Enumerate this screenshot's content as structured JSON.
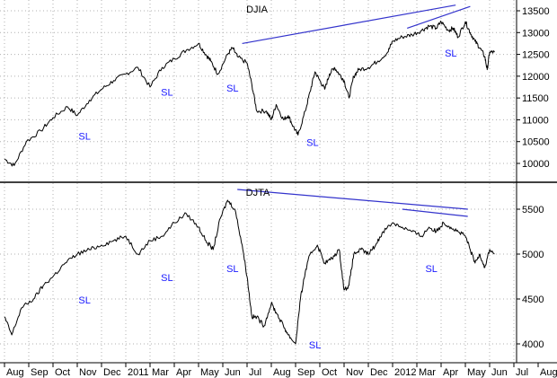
{
  "chart_data": {
    "type": "line",
    "months": [
      "Aug",
      "Sep",
      "Oct",
      "Nov",
      "Dec",
      "2011",
      "Mar",
      "Apr",
      "May",
      "Jun",
      "Jul",
      "Aug",
      "Sep",
      "Oct",
      "Nov",
      "Dec",
      "2012",
      "Mar",
      "Apr",
      "May",
      "Jun",
      "Jul",
      "Aug"
    ],
    "colors": {
      "line": "#000000",
      "trend": "#3333cc",
      "sl": "#1a1aff",
      "grid": "#b0b0b0",
      "divider": "#000000"
    },
    "grid": true,
    "panels": [
      {
        "title": "DJIA",
        "ylim": [
          9500,
          13800
        ],
        "yticks": [
          10000,
          10500,
          11000,
          11500,
          12000,
          12500,
          13000,
          13500
        ],
        "ytick_labels": [
          "10000",
          "10500",
          "11000",
          "11500",
          "12000",
          "12500",
          "13000",
          "13500"
        ],
        "series": {
          "x": [
            0,
            0.4,
            0.9,
            1.5,
            2.0,
            2.6,
            3.0,
            3.5,
            4.0,
            4.5,
            5.0,
            5.5,
            6.0,
            6.5,
            7.0,
            7.5,
            8.0,
            8.3,
            8.5,
            8.8,
            9.2,
            9.4,
            9.6,
            10.0,
            10.2,
            10.4,
            10.8,
            11.0,
            11.2,
            11.5,
            11.7,
            11.9,
            12.1,
            12.4,
            12.6,
            12.8,
            13.0,
            13.2,
            13.4,
            13.6,
            13.8,
            14.0,
            14.2,
            14.4,
            14.6,
            15.0,
            15.4,
            15.8,
            16.0,
            16.4,
            16.8,
            17.2,
            17.5,
            17.8,
            18.0,
            18.3,
            18.5,
            18.7,
            19.0,
            19.2,
            19.4,
            19.6,
            19.8,
            19.9,
            20.0,
            20.2
          ],
          "y": [
            10100,
            9950,
            10500,
            10750,
            11050,
            11300,
            11100,
            11450,
            11700,
            11900,
            12050,
            12200,
            11750,
            12200,
            12400,
            12600,
            12750,
            12500,
            12350,
            12050,
            12500,
            12650,
            12450,
            12300,
            11800,
            11200,
            11200,
            11000,
            11350,
            11000,
            11100,
            10850,
            10650,
            11200,
            11650,
            12100,
            11900,
            11700,
            12050,
            12200,
            12050,
            11900,
            11500,
            12000,
            12150,
            12200,
            12350,
            12550,
            12800,
            12900,
            12950,
            13050,
            13150,
            13100,
            13250,
            13050,
            13100,
            12900,
            13250,
            13000,
            12800,
            12650,
            12450,
            12150,
            12550,
            12550
          ]
        },
        "trendlines": [
          {
            "x": [
              9.8,
              18.6
            ],
            "y": [
              12750,
              13630
            ]
          },
          {
            "x": [
              16.6,
              19.2
            ],
            "y": [
              13100,
              13600
            ]
          }
        ],
        "annotations": [
          {
            "text": "SL",
            "x": 3.3,
            "y": 10550
          },
          {
            "text": "SL",
            "x": 6.7,
            "y": 11550
          },
          {
            "text": "SL",
            "x": 9.4,
            "y": 11650
          },
          {
            "text": "SL",
            "x": 12.7,
            "y": 10400
          },
          {
            "text": "SL",
            "x": 18.4,
            "y": 12450
          }
        ]
      },
      {
        "title": "DJTA",
        "ylim": [
          3700,
          5750
        ],
        "yticks": [
          4000,
          4500,
          5000,
          5500
        ],
        "ytick_labels": [
          "4000",
          "4500",
          "5000",
          "5500"
        ],
        "series": {
          "x": [
            0,
            0.3,
            0.7,
            1.2,
            1.6,
            2.0,
            2.5,
            3.0,
            3.5,
            4.0,
            4.5,
            5.0,
            5.5,
            6.0,
            6.5,
            7.0,
            7.5,
            8.0,
            8.3,
            8.6,
            8.9,
            9.2,
            9.5,
            9.8,
            10.0,
            10.2,
            10.4,
            10.7,
            11.0,
            11.2,
            11.5,
            11.7,
            12.0,
            12.2,
            12.4,
            12.6,
            12.9,
            13.2,
            13.5,
            13.8,
            14.0,
            14.2,
            14.4,
            14.7,
            15.0,
            15.3,
            15.6,
            16.0,
            16.4,
            16.8,
            17.2,
            17.5,
            17.8,
            18.1,
            18.4,
            18.7,
            19.0,
            19.2,
            19.4,
            19.6,
            19.8,
            20.0,
            20.2
          ],
          "y": [
            4300,
            4100,
            4400,
            4500,
            4650,
            4750,
            4900,
            5000,
            5050,
            5100,
            5150,
            5200,
            5000,
            5150,
            5200,
            5350,
            5450,
            5300,
            5150,
            5050,
            5400,
            5600,
            5500,
            5100,
            4750,
            4300,
            4300,
            4200,
            4450,
            4350,
            4200,
            4100,
            4000,
            4500,
            4800,
            5000,
            5100,
            4900,
            4950,
            5050,
            4600,
            4650,
            5000,
            5050,
            5000,
            5100,
            5250,
            5350,
            5300,
            5250,
            5200,
            5300,
            5250,
            5350,
            5300,
            5250,
            5200,
            5050,
            4900,
            5000,
            4850,
            5050,
            5000
          ]
        },
        "trendlines": [
          {
            "x": [
              9.6,
              19.1
            ],
            "y": [
              5720,
              5500
            ]
          },
          {
            "x": [
              16.4,
              19.1
            ],
            "y": [
              5500,
              5420
            ]
          }
        ],
        "annotations": [
          {
            "text": "SL",
            "x": 3.3,
            "y": 4450
          },
          {
            "text": "SL",
            "x": 6.7,
            "y": 4700
          },
          {
            "text": "SL",
            "x": 9.4,
            "y": 4800
          },
          {
            "text": "SL",
            "x": 12.8,
            "y": 3950
          },
          {
            "text": "SL",
            "x": 17.6,
            "y": 4800
          }
        ]
      }
    ]
  }
}
